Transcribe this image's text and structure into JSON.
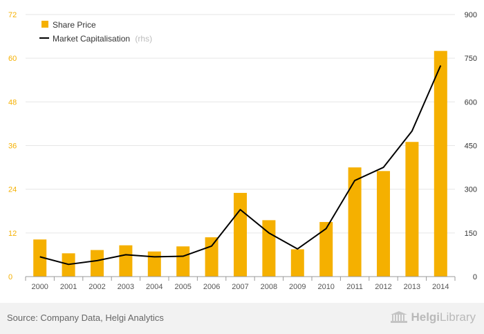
{
  "chart_data": {
    "type": "bar",
    "categories": [
      "2000",
      "2001",
      "2002",
      "2003",
      "2004",
      "2005",
      "2006",
      "2007",
      "2008",
      "2009",
      "2010",
      "2011",
      "2012",
      "2013",
      "2014"
    ],
    "series": [
      {
        "name": "Share Price",
        "type": "bar",
        "axis": "left",
        "color": "#f5b000",
        "values": [
          10.2,
          6.4,
          7.3,
          8.6,
          6.9,
          8.3,
          10.8,
          23.0,
          15.5,
          7.5,
          15.0,
          30.0,
          29.0,
          37.0,
          62.0
        ]
      },
      {
        "name": "Market Capitalisation",
        "name_suffix": "(rhs)",
        "type": "line",
        "axis": "right",
        "color": "#000000",
        "values": [
          68,
          42,
          55,
          75,
          68,
          70,
          105,
          230,
          150,
          95,
          165,
          330,
          375,
          500,
          725
        ]
      }
    ],
    "ylim_left": [
      0,
      72
    ],
    "ylim_right": [
      0,
      900
    ],
    "yticks_left": [
      "0",
      "12",
      "24",
      "36",
      "48",
      "60",
      "72"
    ],
    "yticks_right": [
      "0",
      "150",
      "300",
      "450",
      "600",
      "750",
      "900"
    ],
    "legend_position": "top-left",
    "grid": true
  },
  "colors": {
    "bar": "#f5b000",
    "line": "#000000",
    "left_tick": "#f5b000",
    "right_tick": "#333333",
    "grid": "#e6e6e6",
    "footer_bg": "#f2f2f2"
  },
  "footer": {
    "source": "Source: Company Data, Helgi Analytics",
    "brand_prefix": "Helgi",
    "brand_suffix": "Library",
    "brand_icon": "library-building-icon"
  }
}
